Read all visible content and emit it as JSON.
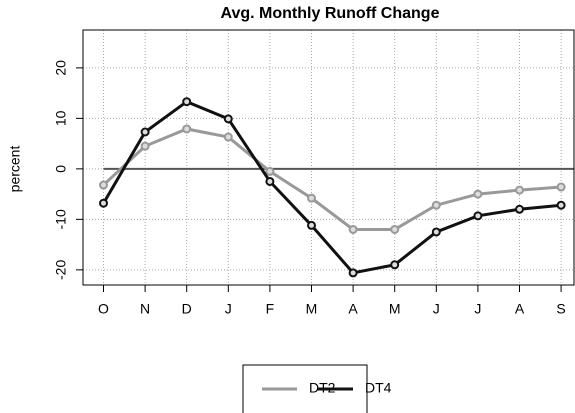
{
  "chart_data": {
    "type": "line",
    "title": "Avg. Monthly Runoff Change",
    "y_label": "percent",
    "categories": [
      "O",
      "N",
      "D",
      "J",
      "F",
      "M",
      "A",
      "M",
      "J",
      "J",
      "A",
      "S"
    ],
    "series": [
      {
        "name": "DT2",
        "color": "#999999",
        "values": [
          -3.2,
          4.5,
          7.9,
          6.3,
          -0.5,
          -5.8,
          -12,
          -12,
          -7.2,
          -5,
          -4.2,
          -3.6
        ]
      },
      {
        "name": "DT4",
        "color": "#111111",
        "values": [
          -6.8,
          7.3,
          13.3,
          9.9,
          -2.5,
          -11.2,
          -20.6,
          -19,
          -12.5,
          -9.3,
          -8,
          -7.2
        ]
      }
    ],
    "ylim": [
      -23,
      27.5
    ],
    "yticks": [
      -20,
      -10,
      0,
      10,
      20
    ],
    "grid": true,
    "reference_line": 0,
    "legend": "bottom"
  }
}
